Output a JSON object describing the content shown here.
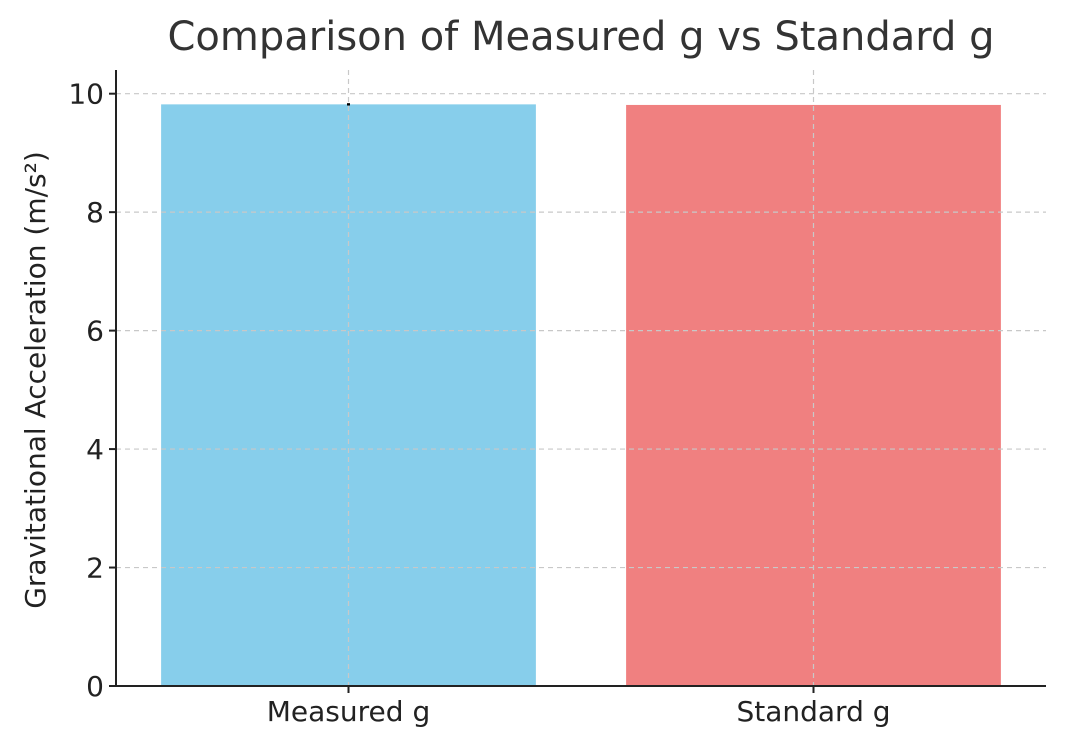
{
  "chart_data": {
    "type": "bar",
    "title": "Comparison of Measured g vs Standard g",
    "xlabel": "",
    "ylabel": "Gravitational Acceleration (m/s²)",
    "categories": [
      "Measured g",
      "Standard g"
    ],
    "values": [
      9.82,
      9.81
    ],
    "error": [
      0.02,
      0
    ],
    "colors": [
      "#87CEEB",
      "#F08080"
    ],
    "ylim": [
      0,
      10.4
    ],
    "yticks": [
      0,
      2,
      4,
      6,
      8,
      10
    ],
    "ytick_labels": [
      "0",
      "2",
      "4",
      "6",
      "8",
      "10"
    ],
    "grid": true,
    "grid_style": "dashed"
  }
}
